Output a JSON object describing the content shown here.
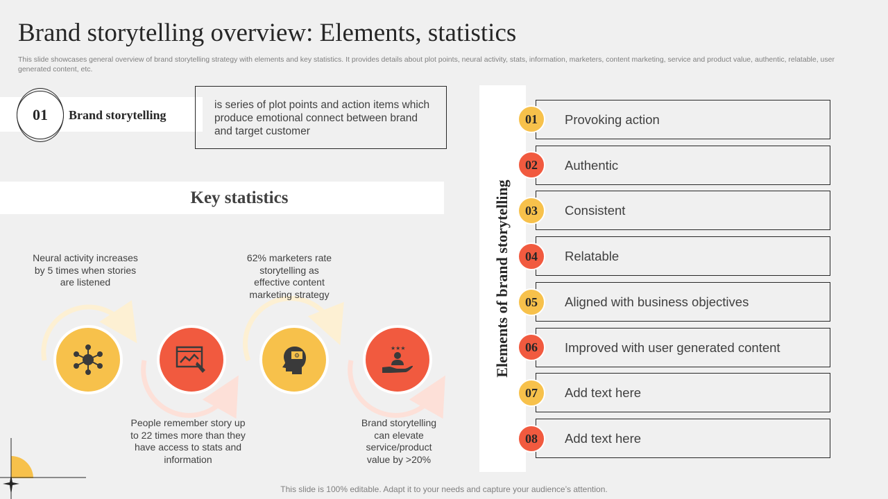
{
  "header": {
    "title": "Brand storytelling overview: Elements, statistics",
    "subtitle": "This slide showcases general overview of brand storytelling strategy with elements and key statistics. It provides details about plot points, neural activity,  stats, information, marketers, content marketing, service and product value, authentic, relatable, user generated content, etc."
  },
  "brand_storytelling": {
    "number": "01",
    "label": "Brand storytelling",
    "description": "is series of plot points and action items which produce emotional connect between brand and target customer"
  },
  "key_statistics": {
    "title": "Key statistics",
    "stats": [
      {
        "text": "Neural activity increases by 5 times when stories are listened",
        "icon": "network-icon",
        "color": "#f7c14b"
      },
      {
        "text": "People remember story up to 22 times more than they have access to stats and information",
        "icon": "presentation-chart-icon",
        "color": "#f15a3f"
      },
      {
        "text": "62% marketers rate storytelling as effective content marketing strategy",
        "icon": "head-idea-icon",
        "color": "#f7c14b"
      },
      {
        "text": "Brand storytelling can elevate service/product value by >20%",
        "icon": "hand-star-user-icon",
        "color": "#f15a3f"
      }
    ]
  },
  "elements": {
    "label": "Elements of brand storytelling",
    "items": [
      {
        "number": "01",
        "text": "Provoking action",
        "color": "#f7c14b"
      },
      {
        "number": "02",
        "text": "Authentic",
        "color": "#f15a3f"
      },
      {
        "number": "03",
        "text": "Consistent",
        "color": "#f7c14b"
      },
      {
        "number": "04",
        "text": "Relatable",
        "color": "#f15a3f"
      },
      {
        "number": "05",
        "text": "Aligned with  business objectives",
        "color": "#f7c14b"
      },
      {
        "number": "06",
        "text": "Improved with user generated content",
        "color": "#f15a3f"
      },
      {
        "number": "07",
        "text": "Add text here",
        "color": "#f7c14b"
      },
      {
        "number": "08",
        "text": "Add text here",
        "color": "#f15a3f"
      }
    ]
  },
  "footer": {
    "text": "This slide is 100% editable. Adapt it to your needs and capture your audience’s attention."
  }
}
